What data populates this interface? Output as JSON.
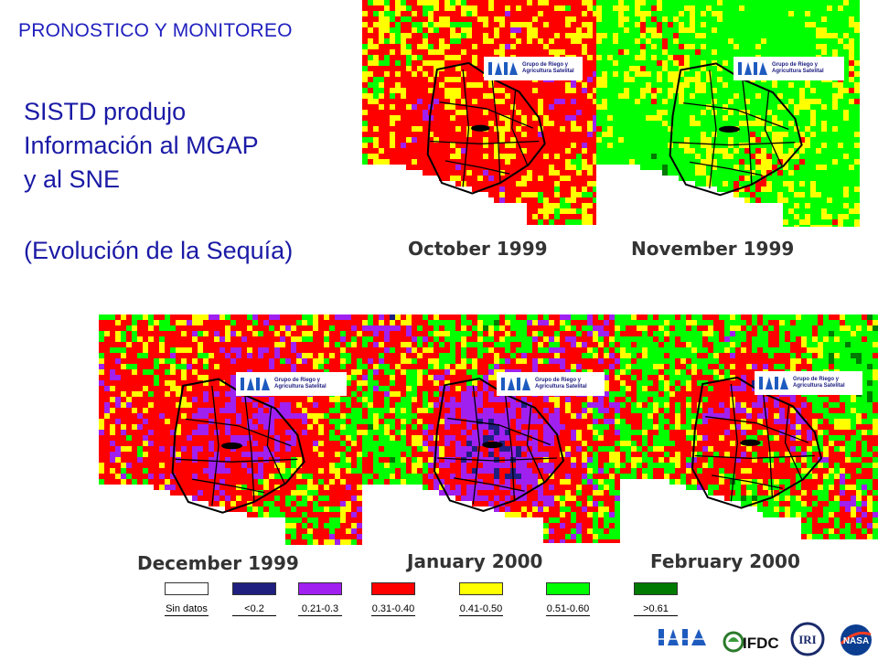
{
  "header": {
    "title": "PRONOSTICO Y MONITOREO"
  },
  "body": {
    "line1": "SISTD produjo",
    "line2": "Información al MGAP",
    "line3": "y al SNE",
    "line4": "(Evolución de la Sequía)"
  },
  "maps": [
    {
      "caption": "October 1999",
      "overlay1": "Grupo de Riego y",
      "overlay2": "Agricultura Satelital"
    },
    {
      "caption": "November 1999",
      "overlay1": "Grupo de Riego y",
      "overlay2": "Agricultura Satelital"
    },
    {
      "caption": "December 1999",
      "overlay1": "Grupo de Riego y",
      "overlay2": "Agricultura Satelital"
    },
    {
      "caption": "January 2000",
      "overlay1": "Grupo de Riego y",
      "overlay2": "Agricultura Satelital"
    },
    {
      "caption": "February 2000",
      "overlay1": "Grupo de Riego y",
      "overlay2": "Agricultura Satelital"
    }
  ],
  "legend": [
    {
      "label": "Sin datos",
      "color": "#ffffff"
    },
    {
      "label": "<0.2",
      "color": "#1f1f80"
    },
    {
      "label": "0.21-0.3",
      "color": "#a020f0"
    },
    {
      "label": "0.31-0.40",
      "color": "#ff0000"
    },
    {
      "label": "0.41-0.50",
      "color": "#ffff00"
    },
    {
      "label": "0.51-0.60",
      "color": "#00ff00"
    },
    {
      "label": ">0.61",
      "color": "#007a00"
    }
  ],
  "logos": {
    "inia": "INIA",
    "ifdc": "IFDC",
    "iri": "IRI",
    "nasa": "NASA"
  }
}
